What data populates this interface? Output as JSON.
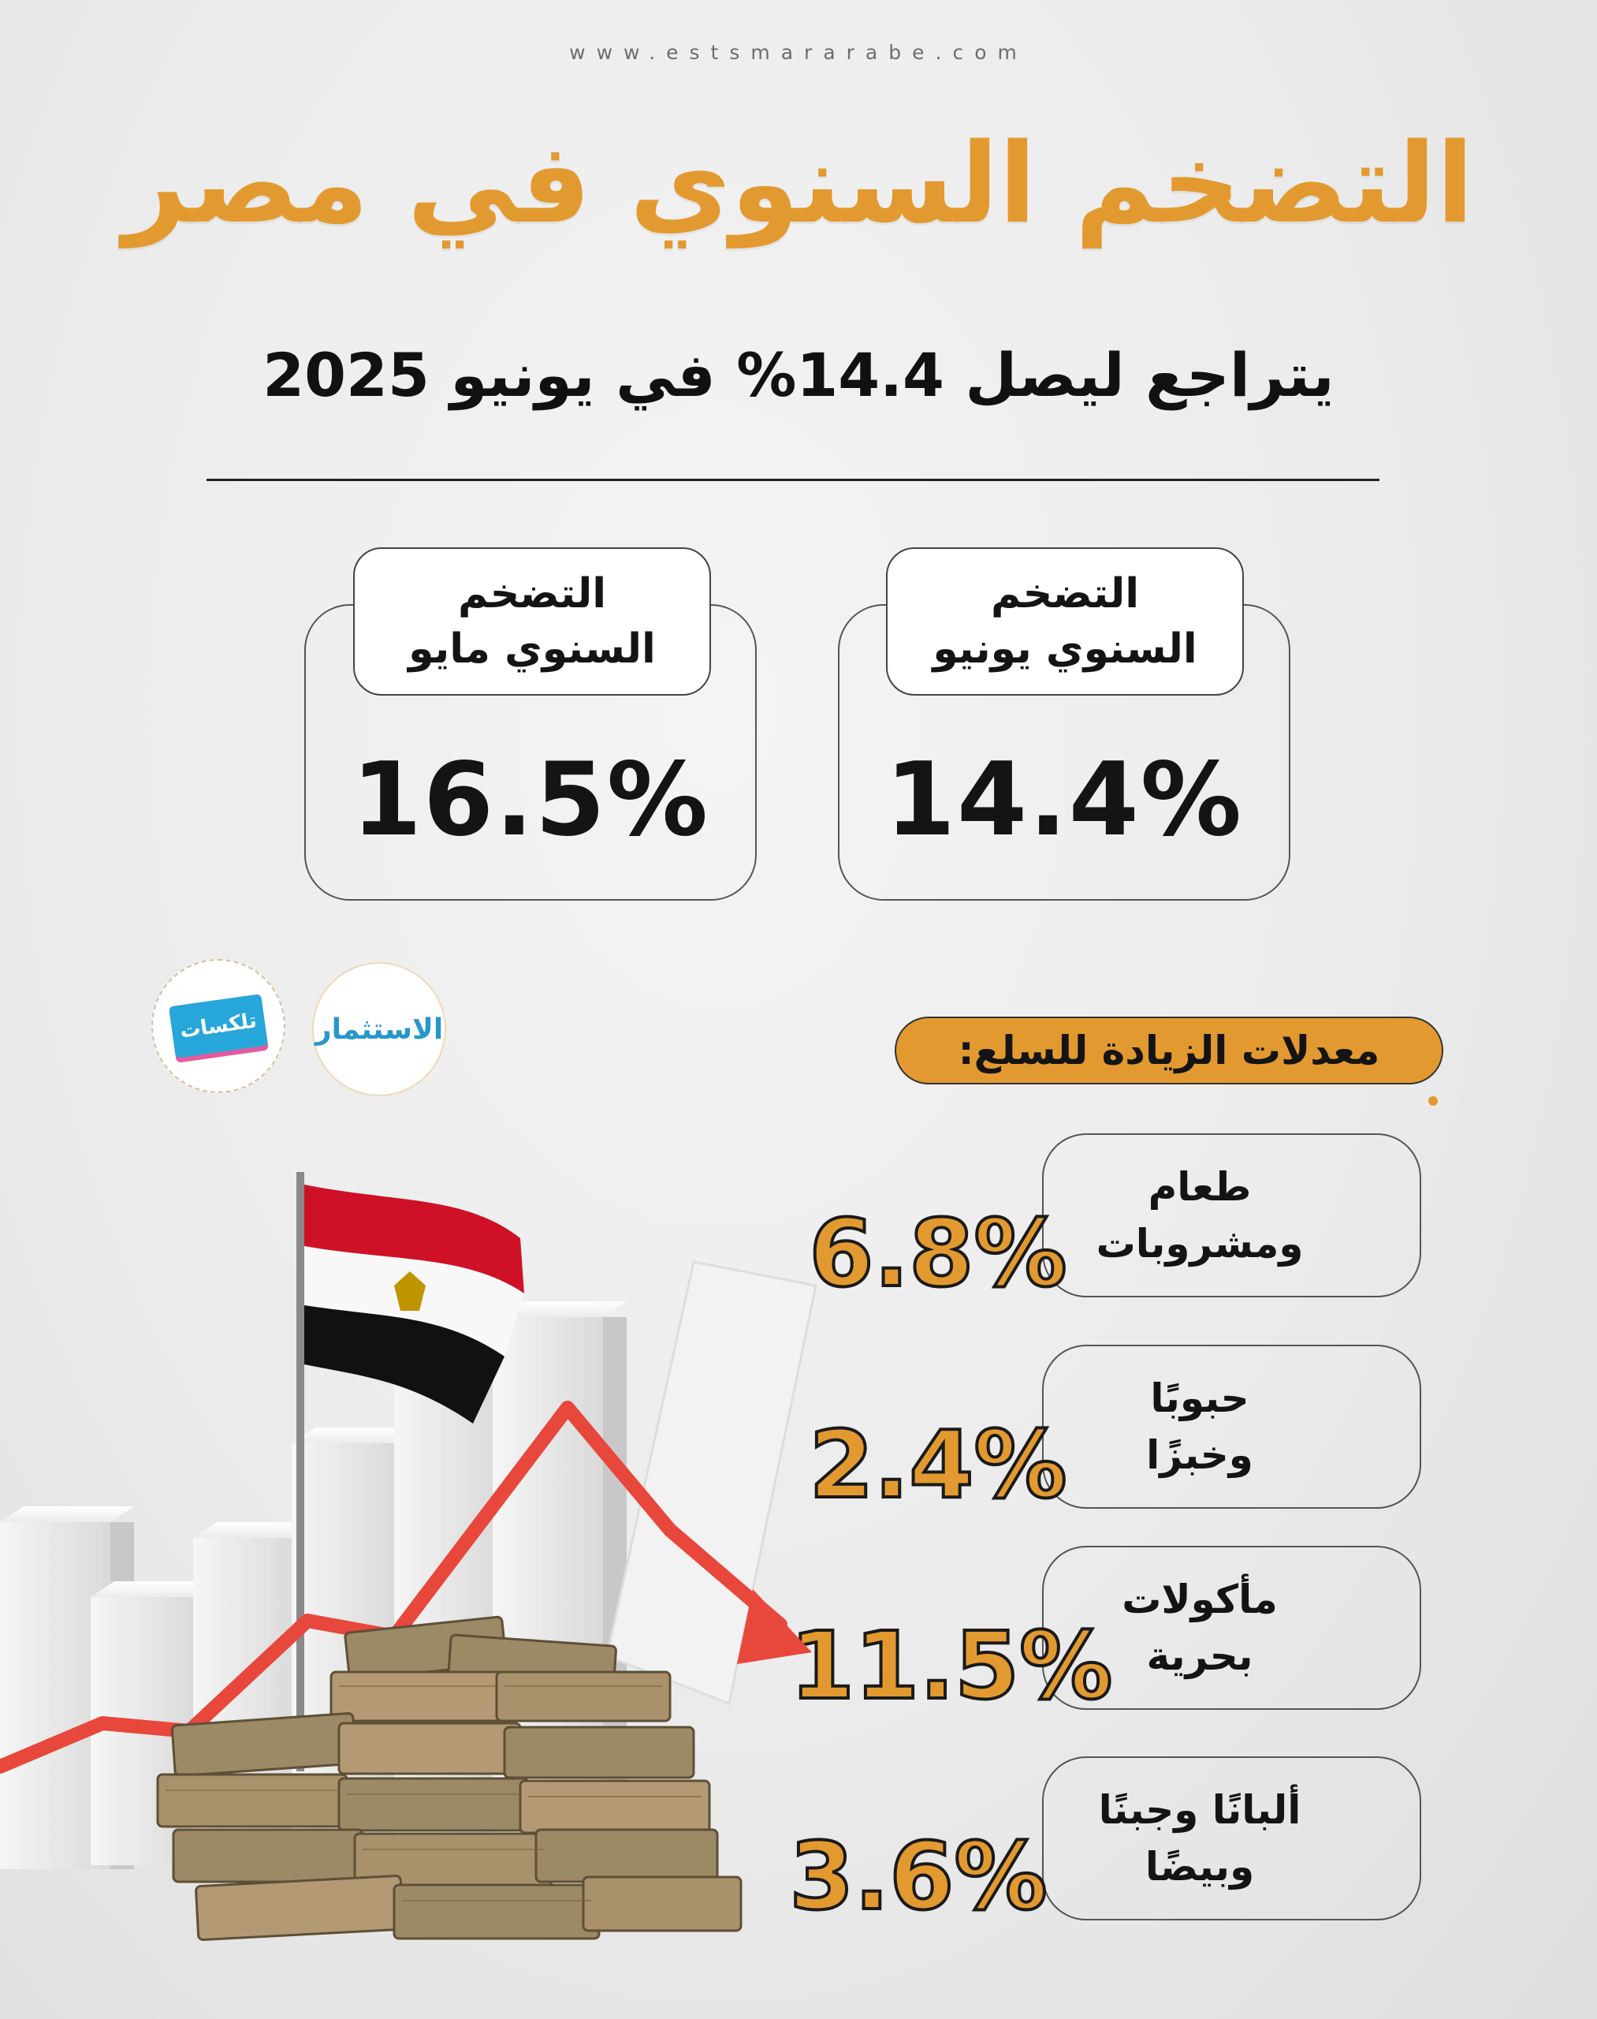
{
  "header": {
    "site_url": "www.estsmararabe.com",
    "title": "التضخم السنوي في مصر",
    "subtitle": "يتراجع ليصل 14.4% في يونيو 2025"
  },
  "stats": {
    "june": {
      "label_line1": "التضخم",
      "label_line2": "السنوي يونيو",
      "value": "14.4%"
    },
    "may": {
      "label_line1": "التضخم",
      "label_line2": "السنوي مايو",
      "value": "16.5%"
    }
  },
  "logos": {
    "estesmar": "الاستثمار",
    "talk": "تلكسات"
  },
  "section_title": "معدلات الزيادة للسلع:",
  "categories": [
    {
      "line1": "طعام",
      "line2": "ومشروبات",
      "value": "6.8%"
    },
    {
      "line1": "حبوبًا",
      "line2": "وخبزًا",
      "value": "2.4%"
    },
    {
      "line1": "مأكولات",
      "line2": "بحرية",
      "value": "11.5%"
    },
    {
      "line1": "ألبانًا وجبنًا",
      "line2": "وبيضًا",
      "value": "3.6%"
    }
  ],
  "colors": {
    "accent": "#e29a30",
    "text": "#141414",
    "trend_arrow": "#e8473c",
    "flag_red": "#ce1126",
    "flag_black": "#111111",
    "flag_eagle": "#c09300"
  },
  "illustration_icons": [
    "egypt-flag-icon",
    "bar-chart-icon",
    "down-trend-arrow-icon",
    "banknotes-stack-icon"
  ]
}
